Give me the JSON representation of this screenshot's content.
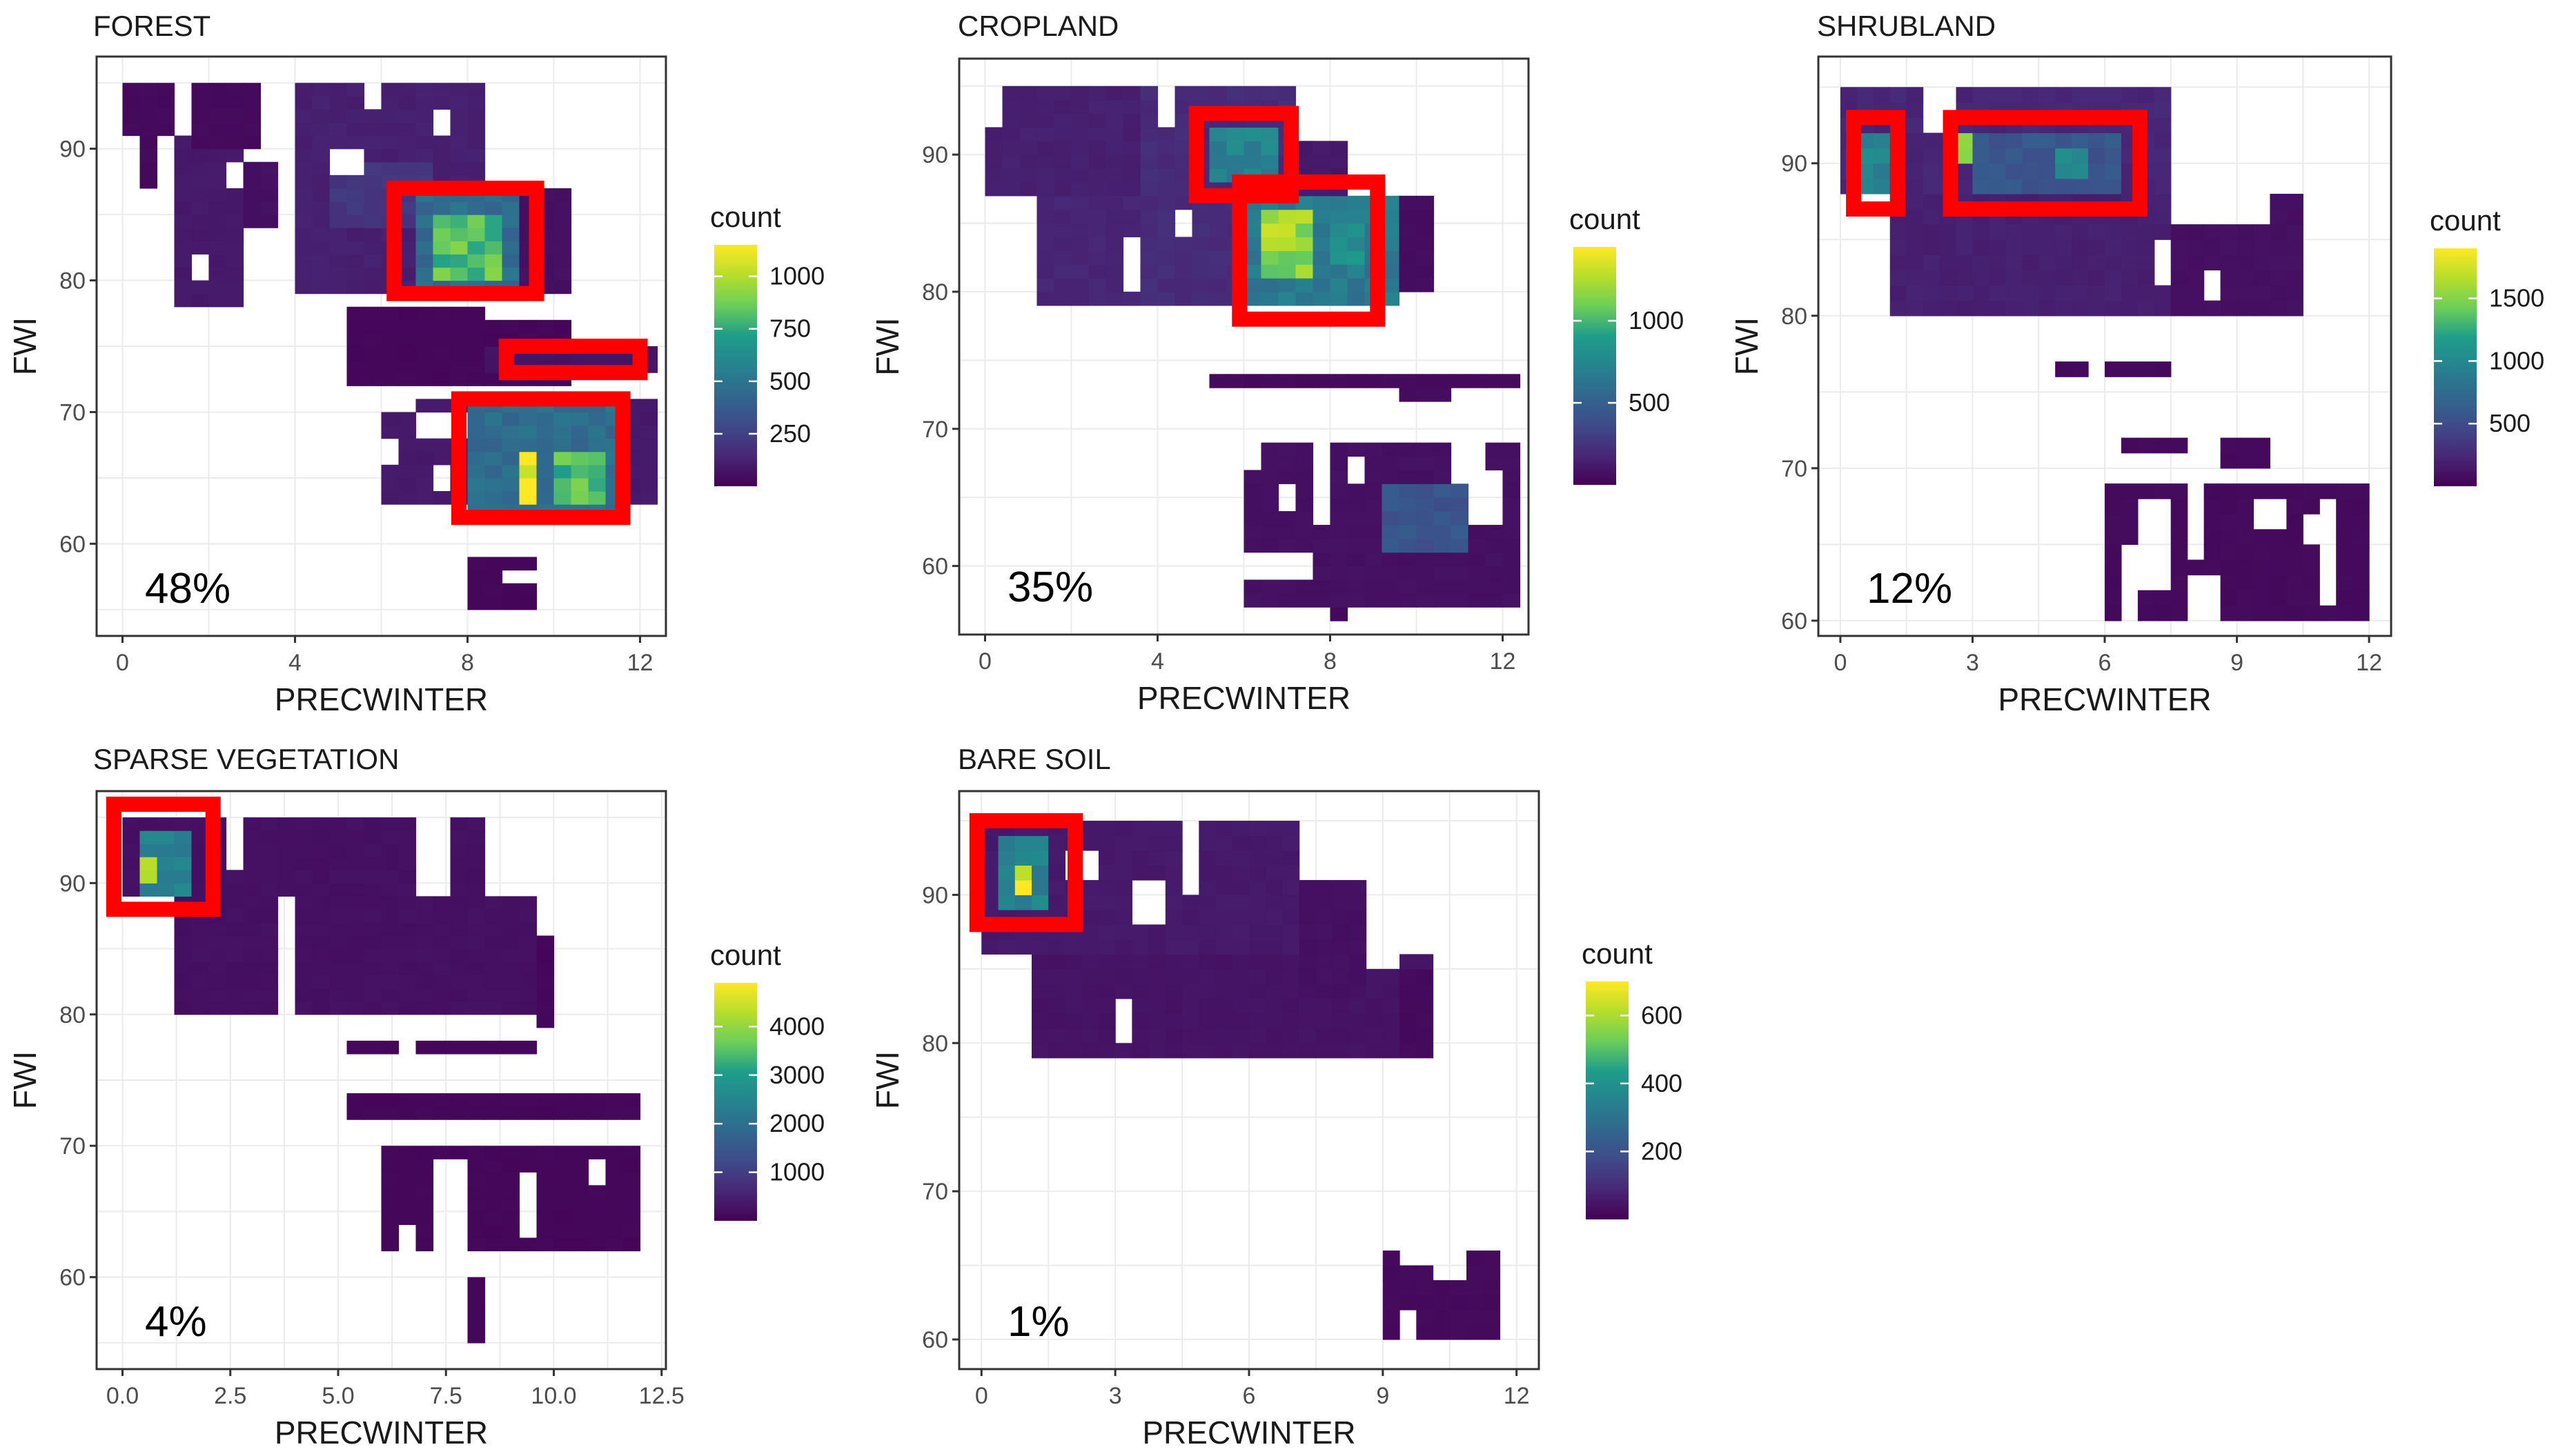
{
  "colors": {
    "viridis": [
      "#440154",
      "#482777",
      "#3f4a8a",
      "#31678e",
      "#26838f",
      "#1f9d8a",
      "#6cce5a",
      "#b6de2b",
      "#fee825"
    ],
    "highlight": "#ff0000",
    "grid": "#ebebeb",
    "frame": "#333333",
    "tick_text": "#4d4d4d",
    "title_text": "#1a1a1a"
  },
  "chart_data": [
    {
      "type": "heatmap",
      "title": "FOREST",
      "xlabel": "PRECWINTER",
      "ylabel": "FWI",
      "xlim": [
        -0.6,
        12.6
      ],
      "ylim": [
        53,
        97
      ],
      "xticks": [
        {
          "v": 0,
          "label": "0"
        },
        {
          "v": 4,
          "label": "4"
        },
        {
          "v": 8,
          "label": "8"
        },
        {
          "v": 12,
          "label": "12"
        }
      ],
      "yticks": [
        {
          "v": 60,
          "label": "60"
        },
        {
          "v": 70,
          "label": "70"
        },
        {
          "v": 80,
          "label": "80"
        },
        {
          "v": 90,
          "label": "90"
        }
      ],
      "legend_title": "count",
      "legend_max": 1150,
      "legend_ticks": [
        {
          "v": 250,
          "label": "250"
        },
        {
          "v": 500,
          "label": "500"
        },
        {
          "v": 750,
          "label": "750"
        },
        {
          "v": 1000,
          "label": "1000"
        }
      ],
      "percentage": "48%",
      "highlights": [
        [
          6.3,
          9.6,
          79,
          87
        ],
        [
          8.9,
          12.0,
          73,
          75
        ],
        [
          7.8,
          11.6,
          62,
          71
        ]
      ],
      "grid_step": [
        0.4,
        1.0
      ],
      "blocks": [
        [
          0.0,
          1.2,
          91,
          95,
          0.03
        ],
        [
          0.4,
          0.8,
          87,
          91,
          0.03
        ],
        [
          1.2,
          2.8,
          78,
          91,
          0.08
        ],
        [
          2.8,
          3.6,
          84,
          89,
          0.05
        ],
        [
          1.6,
          3.2,
          90,
          95,
          0.03
        ],
        [
          4.0,
          8.4,
          79,
          95,
          0.1
        ],
        [
          5.0,
          7.4,
          84,
          89,
          0.18
        ],
        [
          6.8,
          9.2,
          79,
          87,
          0.4
        ],
        [
          7.2,
          8.8,
          80,
          85,
          0.72
        ],
        [
          9.2,
          10.4,
          79,
          87,
          0.05
        ],
        [
          5.4,
          10.4,
          72,
          78,
          0.02
        ],
        [
          8.6,
          12.4,
          73,
          75,
          0.06
        ],
        [
          6.0,
          12.4,
          63,
          71,
          0.08
        ],
        [
          8.0,
          11.6,
          62,
          71,
          0.4
        ],
        [
          9.2,
          9.6,
          63,
          67,
          1.0
        ],
        [
          10.0,
          11.2,
          63,
          67,
          0.7
        ],
        [
          8.0,
          9.6,
          55,
          59,
          0.02
        ]
      ],
      "holes": [
        [
          2.6,
          3.0,
          87,
          89
        ],
        [
          5.0,
          5.8,
          88,
          90
        ],
        [
          7.4,
          7.8,
          91,
          93
        ],
        [
          1.8,
          2.2,
          80,
          82
        ],
        [
          8.4,
          10.4,
          77,
          79
        ],
        [
          7.0,
          8.0,
          68,
          70
        ],
        [
          7.4,
          7.8,
          64,
          66
        ],
        [
          6.2,
          6.6,
          66,
          68
        ],
        [
          8.8,
          10.0,
          57,
          58
        ],
        [
          3.4,
          4.0,
          90,
          92
        ],
        [
          5.8,
          6.2,
          93,
          95
        ],
        [
          6.0,
          7.0,
          70,
          72
        ]
      ]
    },
    {
      "type": "heatmap",
      "title": "CROPLAND",
      "xlabel": "PRECWINTER",
      "ylabel": "FWI",
      "xlim": [
        -0.6,
        12.6
      ],
      "ylim": [
        55,
        97
      ],
      "xticks": [
        {
          "v": 0,
          "label": "0"
        },
        {
          "v": 4,
          "label": "4"
        },
        {
          "v": 8,
          "label": "8"
        },
        {
          "v": 12,
          "label": "12"
        }
      ],
      "yticks": [
        {
          "v": 60,
          "label": "60"
        },
        {
          "v": 70,
          "label": "70"
        },
        {
          "v": 80,
          "label": "80"
        },
        {
          "v": 90,
          "label": "90"
        }
      ],
      "legend_title": "count",
      "legend_max": 1450,
      "legend_ticks": [
        {
          "v": 500,
          "label": "500"
        },
        {
          "v": 1000,
          "label": "1000"
        }
      ],
      "percentage": "35%",
      "highlights": [
        [
          4.9,
          7.1,
          87,
          93
        ],
        [
          5.9,
          9.1,
          78,
          88
        ]
      ],
      "grid_step": [
        0.4,
        1.0
      ],
      "blocks": [
        [
          0.0,
          3.6,
          87,
          95,
          0.1
        ],
        [
          1.2,
          3.6,
          79,
          87,
          0.12
        ],
        [
          3.6,
          7.2,
          79,
          95,
          0.14
        ],
        [
          5.2,
          6.8,
          88,
          92,
          0.5
        ],
        [
          7.2,
          8.4,
          81,
          91,
          0.08
        ],
        [
          6.0,
          9.6,
          79,
          87,
          0.45
        ],
        [
          6.4,
          7.6,
          81,
          86,
          0.82
        ],
        [
          8.0,
          8.8,
          82,
          85,
          0.55
        ],
        [
          9.6,
          10.4,
          80,
          87,
          0.04
        ],
        [
          5.2,
          12.4,
          73,
          74,
          0.03
        ],
        [
          9.6,
          10.8,
          72,
          73,
          0.04
        ],
        [
          6.0,
          12.4,
          57,
          69,
          0.05
        ],
        [
          9.2,
          11.2,
          61,
          66,
          0.3
        ],
        [
          8.0,
          8.4,
          56,
          57,
          0.03
        ]
      ],
      "holes": [
        [
          0.0,
          0.4,
          92,
          95
        ],
        [
          3.2,
          3.6,
          80,
          84
        ],
        [
          4.4,
          4.8,
          84,
          86
        ],
        [
          8.8,
          9.6,
          72,
          73
        ],
        [
          6.0,
          6.4,
          67,
          69
        ],
        [
          6.8,
          7.2,
          64,
          66
        ],
        [
          6.0,
          7.6,
          59,
          61
        ],
        [
          11.2,
          12.0,
          63,
          67
        ],
        [
          7.6,
          8.0,
          63,
          69
        ],
        [
          4.0,
          4.4,
          92,
          95
        ],
        [
          8.4,
          8.8,
          66,
          68
        ],
        [
          10.8,
          11.6,
          66,
          69
        ]
      ]
    },
    {
      "type": "heatmap",
      "title": "SHRUBLAND",
      "xlabel": "PRECWINTER",
      "ylabel": "FWI",
      "xlim": [
        -0.5,
        12.5
      ],
      "ylim": [
        59,
        97
      ],
      "xticks": [
        {
          "v": 0,
          "label": "0"
        },
        {
          "v": 3,
          "label": "3"
        },
        {
          "v": 6,
          "label": "6"
        },
        {
          "v": 9,
          "label": "9"
        },
        {
          "v": 12,
          "label": "12"
        }
      ],
      "yticks": [
        {
          "v": 60,
          "label": "60"
        },
        {
          "v": 70,
          "label": "70"
        },
        {
          "v": 80,
          "label": "80"
        },
        {
          "v": 90,
          "label": "90"
        }
      ],
      "legend_title": "count",
      "legend_max": 1900,
      "legend_ticks": [
        {
          "v": 500,
          "label": "500"
        },
        {
          "v": 1000,
          "label": "1000"
        },
        {
          "v": 1500,
          "label": "1500"
        }
      ],
      "percentage": "12%",
      "highlights": [
        [
          0.3,
          1.3,
          87,
          93
        ],
        [
          2.5,
          6.8,
          87,
          93
        ]
      ],
      "grid_step": [
        0.375,
        1.0
      ],
      "blocks": [
        [
          0.0,
          7.5,
          88,
          95,
          0.12
        ],
        [
          0.5,
          1.0,
          88,
          92,
          0.5
        ],
        [
          2.6,
          3.0,
          90,
          92,
          0.9
        ],
        [
          3.0,
          6.3,
          88,
          92,
          0.3
        ],
        [
          5.0,
          5.5,
          89,
          91,
          0.55
        ],
        [
          1.3,
          7.5,
          80,
          88,
          0.1
        ],
        [
          7.5,
          9.8,
          80,
          86,
          0.05
        ],
        [
          9.8,
          10.5,
          80,
          88,
          0.05
        ],
        [
          5.0,
          7.5,
          76,
          77,
          0.03
        ],
        [
          6.3,
          8.0,
          71,
          72,
          0.03
        ],
        [
          8.8,
          9.8,
          70,
          72,
          0.03
        ],
        [
          6.0,
          12.0,
          60,
          69,
          0.03
        ]
      ],
      "holes": [
        [
          1.9,
          2.6,
          92,
          95
        ],
        [
          7.2,
          7.5,
          82,
          85
        ],
        [
          8.2,
          8.8,
          81,
          83
        ],
        [
          5.5,
          6.0,
          76,
          77
        ],
        [
          7.0,
          7.3,
          71,
          72
        ],
        [
          6.3,
          6.8,
          60,
          65
        ],
        [
          6.8,
          7.5,
          62,
          68
        ],
        [
          8.0,
          8.8,
          60,
          63
        ],
        [
          9.3,
          10.0,
          66,
          68
        ],
        [
          10.5,
          10.8,
          65,
          67
        ],
        [
          11.0,
          11.3,
          61,
          68
        ],
        [
          7.8,
          8.3,
          64,
          69
        ]
      ]
    },
    {
      "type": "heatmap",
      "title": "SPARSE VEGETATION",
      "xlabel": "PRECWINTER",
      "ylabel": "FWI",
      "xlim": [
        -0.6,
        12.6
      ],
      "ylim": [
        53,
        97
      ],
      "xticks": [
        {
          "v": 0,
          "label": "0.0"
        },
        {
          "v": 2.5,
          "label": "2.5"
        },
        {
          "v": 5,
          "label": "5.0"
        },
        {
          "v": 7.5,
          "label": "7.5"
        },
        {
          "v": 10,
          "label": "10.0"
        },
        {
          "v": 12.5,
          "label": "12.5"
        }
      ],
      "yticks": [
        {
          "v": 60,
          "label": "60"
        },
        {
          "v": 70,
          "label": "70"
        },
        {
          "v": 80,
          "label": "80"
        },
        {
          "v": 90,
          "label": "90"
        }
      ],
      "legend_title": "count",
      "legend_max": 4900,
      "legend_ticks": [
        {
          "v": 1000,
          "label": "1000"
        },
        {
          "v": 2000,
          "label": "2000"
        },
        {
          "v": 3000,
          "label": "3000"
        },
        {
          "v": 4000,
          "label": "4000"
        }
      ],
      "percentage": "4%",
      "highlights": [
        [
          -0.2,
          2.1,
          88,
          96
        ]
      ],
      "grid_step": [
        0.4,
        1.0
      ],
      "blocks": [
        [
          0.0,
          8.4,
          89,
          95,
          0.05
        ],
        [
          0.4,
          1.6,
          89,
          94,
          0.5
        ],
        [
          0.6,
          1.0,
          90,
          92,
          0.95
        ],
        [
          1.2,
          3.6,
          80,
          89,
          0.05
        ],
        [
          4.0,
          9.6,
          80,
          89,
          0.05
        ],
        [
          9.6,
          10.0,
          79,
          86,
          0.02
        ],
        [
          5.2,
          9.6,
          77,
          78,
          0.02
        ],
        [
          5.2,
          12.0,
          72,
          74,
          0.02
        ],
        [
          6.0,
          12.0,
          62,
          70,
          0.02
        ],
        [
          8.0,
          8.4,
          55,
          60,
          0.02
        ]
      ],
      "holes": [
        [
          6.8,
          7.6,
          89,
          95
        ],
        [
          3.6,
          4.0,
          80,
          89
        ],
        [
          2.4,
          2.8,
          91,
          95
        ],
        [
          6.4,
          6.8,
          77,
          78
        ],
        [
          7.2,
          8.0,
          61,
          69
        ],
        [
          9.2,
          9.6,
          63,
          68
        ],
        [
          10.8,
          11.2,
          67,
          69
        ],
        [
          6.4,
          6.8,
          62,
          64
        ]
      ]
    },
    {
      "type": "heatmap",
      "title": "BARE SOIL",
      "xlabel": "PRECWINTER",
      "ylabel": "FWI",
      "xlim": [
        -0.5,
        12.5
      ],
      "ylim": [
        58,
        97
      ],
      "xticks": [
        {
          "v": 0,
          "label": "0"
        },
        {
          "v": 3,
          "label": "3"
        },
        {
          "v": 6,
          "label": "6"
        },
        {
          "v": 9,
          "label": "9"
        },
        {
          "v": 12,
          "label": "12"
        }
      ],
      "yticks": [
        {
          "v": 60,
          "label": "60"
        },
        {
          "v": 70,
          "label": "70"
        },
        {
          "v": 80,
          "label": "80"
        },
        {
          "v": 90,
          "label": "90"
        }
      ],
      "legend_title": "count",
      "legend_max": 700,
      "legend_ticks": [
        {
          "v": 200,
          "label": "200"
        },
        {
          "v": 400,
          "label": "400"
        },
        {
          "v": 600,
          "label": "600"
        }
      ],
      "percentage": "1%",
      "highlights": [
        [
          -0.1,
          2.1,
          88,
          95
        ]
      ],
      "grid_step": [
        0.375,
        1.0
      ],
      "blocks": [
        [
          0.0,
          7.0,
          86,
          95,
          0.08
        ],
        [
          0.4,
          1.5,
          89,
          94,
          0.5
        ],
        [
          0.8,
          1.1,
          90,
          92,
          0.95
        ],
        [
          1.2,
          10.0,
          79,
          86,
          0.06
        ],
        [
          7.0,
          8.5,
          83,
          91,
          0.05
        ],
        [
          9.5,
          10.0,
          79,
          85,
          0.03
        ],
        [
          10.0,
          10.3,
          72,
          73,
          0.03
        ],
        [
          9.0,
          11.5,
          60,
          66,
          0.03
        ]
      ],
      "holes": [
        [
          2.0,
          2.7,
          91,
          93
        ],
        [
          3.5,
          4.0,
          88,
          91
        ],
        [
          3.0,
          3.4,
          80,
          83
        ],
        [
          4.5,
          5.0,
          90,
          95
        ],
        [
          8.5,
          9.5,
          85,
          91
        ],
        [
          9.5,
          10.0,
          65,
          66
        ],
        [
          10.3,
          10.9,
          64,
          66
        ],
        [
          9.4,
          9.8,
          60,
          62
        ]
      ]
    }
  ]
}
